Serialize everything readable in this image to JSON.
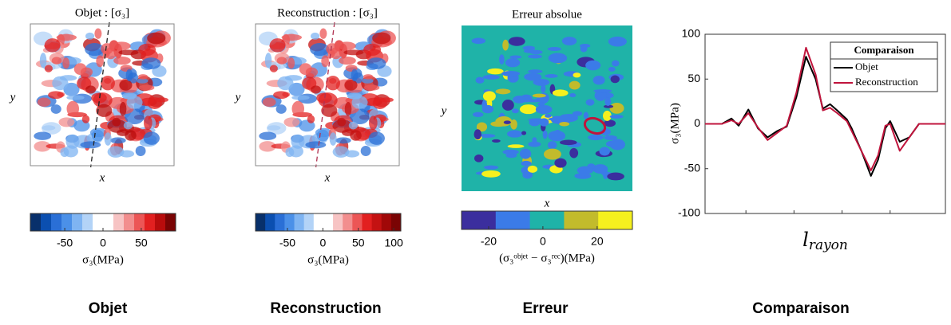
{
  "panels": [
    {
      "title": "Objet : [σ₃]",
      "xlabel": "x",
      "ylabel": "y",
      "caption": "Objet",
      "colorbar": {
        "label": "σ₃(MPa)",
        "lim": [
          -95,
          95
        ],
        "ticks": [
          -50,
          0,
          50
        ],
        "colors": [
          "#08306b",
          "#0b4fb0",
          "#2a6fd6",
          "#4b90e8",
          "#7fb4f2",
          "#b3d3f7",
          "#ffffff",
          "#ffffff",
          "#f7c4c4",
          "#f28e8e",
          "#ec5656",
          "#e22020",
          "#b80c0c",
          "#7a0404"
        ]
      }
    },
    {
      "title": "Reconstruction : [σ₃]",
      "xlabel": "x",
      "ylabel": "y",
      "caption": "Reconstruction",
      "colorbar": {
        "label": "σ₃(MPa)",
        "lim": [
          -95,
          110
        ],
        "ticks": [
          -50,
          0,
          50,
          100
        ],
        "colors": [
          "#08306b",
          "#0b4fb0",
          "#2a6fd6",
          "#4b90e8",
          "#7fb4f2",
          "#b3d3f7",
          "#ffffff",
          "#ffffff",
          "#f7c4c4",
          "#f28e8e",
          "#ec5656",
          "#e22020",
          "#c41212",
          "#a00808",
          "#7a0404"
        ]
      }
    },
    {
      "title": "Erreur absolue",
      "xlabel": "x",
      "ylabel": "y",
      "caption": "Erreur",
      "colorbar": {
        "label": "(σ₃ᵒᵇʲᵉᵗ − σ₃ʳᵉᶜ)(MPa)",
        "lim": [
          -30,
          33
        ],
        "ticks": [
          -20,
          0,
          20
        ],
        "colors": [
          "#3b2e9e",
          "#3b7be8",
          "#1fb3a8",
          "#c2bb2c",
          "#f5f01e"
        ]
      }
    }
  ],
  "chart_data": {
    "type": "line",
    "caption": "Comparaison",
    "ylabel": "σ₃(MPa)",
    "xlabel": {
      "base": "l",
      "sub": "rayon"
    },
    "legend_title": "Comparaison",
    "legend": "upper right",
    "xlim": [
      0,
      1
    ],
    "ylim": [
      -100,
      100
    ],
    "yticks": [
      -100,
      -50,
      0,
      50,
      100
    ],
    "x": [
      0,
      0.07,
      0.11,
      0.14,
      0.18,
      0.22,
      0.26,
      0.3,
      0.34,
      0.38,
      0.42,
      0.46,
      0.49,
      0.52,
      0.55,
      0.59,
      0.61,
      0.65,
      0.69,
      0.72,
      0.75,
      0.77,
      0.81,
      0.85,
      0.89,
      1
    ],
    "series": [
      {
        "name": "Objet",
        "color": "#000000",
        "values": [
          0,
          0,
          6,
          -2,
          16,
          -5,
          -15,
          -8,
          -3,
          30,
          75,
          50,
          17,
          22,
          15,
          5,
          -5,
          -30,
          -58,
          -40,
          -5,
          3,
          -20,
          -15,
          0,
          0
        ]
      },
      {
        "name": "Reconstruction",
        "color": "#c0143c",
        "values": [
          0,
          0,
          4,
          0,
          12,
          -4,
          -18,
          -10,
          -2,
          35,
          85,
          55,
          15,
          18,
          12,
          3,
          -8,
          -30,
          -52,
          -35,
          -2,
          0,
          -30,
          -15,
          0,
          0
        ]
      }
    ]
  }
}
